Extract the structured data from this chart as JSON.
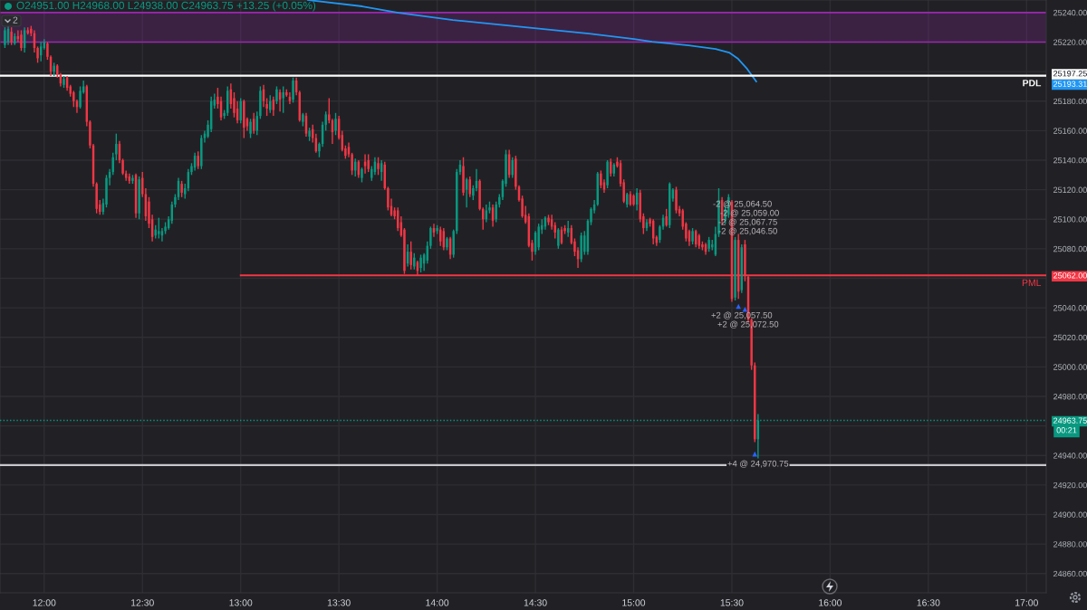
{
  "chart_data": {
    "type": "candlestick",
    "title": "O24951.00 H24968.00 L24938.00 C24963.75 +13.25 (+0.05%)",
    "x": [
      11.8,
      11.8167,
      11.8333,
      11.85,
      11.8667,
      11.8833,
      11.9,
      11.9167,
      11.9333,
      11.95,
      11.9667,
      11.9833,
      12,
      12.0167,
      12.0333,
      12.05,
      12.0667,
      12.0833,
      12.1,
      12.1167,
      12.1333,
      12.15,
      12.1667,
      12.1833,
      12.2,
      12.2167,
      12.2333,
      12.25,
      12.2667,
      12.2833,
      12.3,
      12.3167,
      12.3333,
      12.35,
      12.3667,
      12.3833,
      12.4,
      12.4167,
      12.4333,
      12.45,
      12.4667,
      12.4833,
      12.5,
      12.5167,
      12.5333,
      12.55,
      12.5667,
      12.5833,
      12.6,
      12.6167,
      12.6333,
      12.65,
      12.6667,
      12.6833,
      12.7,
      12.7167,
      12.7333,
      12.75,
      12.7667,
      12.7833,
      12.8,
      12.8167,
      12.8333,
      12.85,
      12.8667,
      12.8833,
      12.9,
      12.9167,
      12.9333,
      12.95,
      12.9667,
      12.9833,
      13,
      13.0167,
      13.0333,
      13.05,
      13.0667,
      13.0833,
      13.1,
      13.1167,
      13.1333,
      13.15,
      13.1667,
      13.1833,
      13.2,
      13.2167,
      13.2333,
      13.25,
      13.2667,
      13.2833,
      13.3,
      13.3167,
      13.3333,
      13.35,
      13.3667,
      13.3833,
      13.4,
      13.4167,
      13.4333,
      13.45,
      13.4667,
      13.4833,
      13.5,
      13.5167,
      13.5333,
      13.55,
      13.5667,
      13.5833,
      13.6,
      13.6167,
      13.6333,
      13.65,
      13.6667,
      13.6833,
      13.7,
      13.7167,
      13.7333,
      13.75,
      13.7667,
      13.7833,
      13.8,
      13.8167,
      13.8333,
      13.85,
      13.8667,
      13.8833,
      13.9,
      13.9167,
      13.9333,
      13.95,
      13.9667,
      13.9833,
      14,
      14.0167,
      14.0333,
      14.05,
      14.0667,
      14.0833,
      14.1,
      14.1167,
      14.1333,
      14.15,
      14.1667,
      14.1833,
      14.2,
      14.2167,
      14.2333,
      14.25,
      14.2667,
      14.2833,
      14.3,
      14.3167,
      14.3333,
      14.35,
      14.3667,
      14.3833,
      14.4,
      14.4167,
      14.4333,
      14.45,
      14.4667,
      14.4833,
      14.5,
      14.5167,
      14.5333,
      14.55,
      14.5667,
      14.5833,
      14.6,
      14.6167,
      14.6333,
      14.65,
      14.6667,
      14.6833,
      14.7,
      14.7167,
      14.7333,
      14.75,
      14.7667,
      14.7833,
      14.8,
      14.8167,
      14.8333,
      14.85,
      14.8667,
      14.8833,
      14.9,
      14.9167,
      14.9333,
      14.95,
      14.9667,
      14.9833,
      15,
      15.0167,
      15.0333,
      15.05,
      15.0667,
      15.0833,
      15.1,
      15.1167,
      15.1333,
      15.15,
      15.1667,
      15.1833,
      15.2,
      15.2167,
      15.2333,
      15.25,
      15.2667,
      15.2833,
      15.3,
      15.3167,
      15.3333,
      15.35,
      15.3667,
      15.3833,
      15.4,
      15.4167,
      15.4333,
      15.45,
      15.4667,
      15.4833,
      15.5,
      15.5167,
      15.5333,
      15.55,
      15.5667,
      15.5833,
      15.6,
      15.6167,
      15.6333
    ],
    "ohlc": [
      [
        25218,
        25230,
        25216,
        25228
      ],
      [
        25220,
        25231,
        25218,
        25229
      ],
      [
        25227,
        25230,
        25218,
        25220
      ],
      [
        25219,
        25226,
        25218,
        25224
      ],
      [
        25224,
        25228,
        25220,
        25222
      ],
      [
        25225,
        25228,
        25214,
        25216
      ],
      [
        25216,
        25230,
        25213,
        25228
      ],
      [
        25228,
        25230,
        25225,
        25226
      ],
      [
        25229,
        25231,
        25224,
        25226
      ],
      [
        25226,
        25228,
        25213,
        25216
      ],
      [
        25216,
        25217,
        25206,
        25209
      ],
      [
        25211,
        25220,
        25207,
        25217
      ],
      [
        25216,
        25222,
        25215,
        25220
      ],
      [
        25219,
        25220,
        25208,
        25210
      ],
      [
        25210,
        25211,
        25197,
        25200
      ],
      [
        25200,
        25206,
        25197,
        25204
      ],
      [
        25204,
        25205,
        25196,
        25198
      ],
      [
        25198,
        25199,
        25190,
        25192
      ],
      [
        25191,
        25197,
        25189,
        25195
      ],
      [
        25196,
        25197,
        25187,
        25189
      ],
      [
        25190,
        25191,
        25183,
        25185
      ],
      [
        25186,
        25187,
        25176,
        25180
      ],
      [
        25180,
        25181,
        25172,
        25176
      ],
      [
        25176,
        25190,
        25175,
        25187
      ],
      [
        25186,
        25194,
        25185,
        25190
      ],
      [
        25190,
        25191,
        25163,
        25166
      ],
      [
        25166,
        25167,
        25148,
        25150
      ],
      [
        25150,
        25151,
        25122,
        25124
      ],
      [
        25124,
        25125,
        25104,
        25107
      ],
      [
        25110,
        25113,
        25103,
        25105
      ],
      [
        25105,
        25114,
        25103,
        25111
      ],
      [
        25110,
        25130,
        25108,
        25128
      ],
      [
        25128,
        25134,
        25123,
        25132
      ],
      [
        25132,
        25145,
        25130,
        25142
      ],
      [
        25144,
        25158,
        25140,
        25151
      ],
      [
        25151,
        25153,
        25138,
        25140
      ],
      [
        25140,
        25141,
        25130,
        25131
      ],
      [
        25131,
        25133,
        25126,
        25128
      ],
      [
        25129,
        25131,
        25124,
        25126
      ],
      [
        25126,
        25130,
        25124,
        25128
      ],
      [
        25130,
        25131,
        25101,
        25104
      ],
      [
        25104,
        25129,
        25100,
        25127
      ],
      [
        25128,
        25132,
        25115,
        25117
      ],
      [
        25117,
        25121,
        25099,
        25102
      ],
      [
        25112,
        25115,
        25094,
        25097
      ],
      [
        25100,
        25103,
        25085,
        25088
      ],
      [
        25089,
        25096,
        25087,
        25093
      ],
      [
        25090,
        25101,
        25087,
        25092
      ],
      [
        25089,
        25094,
        25085,
        25092
      ],
      [
        25092,
        25098,
        25090,
        25095
      ],
      [
        25094,
        25102,
        25093,
        25100
      ],
      [
        25099,
        25112,
        25097,
        25110
      ],
      [
        25110,
        25117,
        25108,
        25115
      ],
      [
        25115,
        25128,
        25113,
        25126
      ],
      [
        25124,
        25126,
        25115,
        25118
      ],
      [
        25117,
        25124,
        25114,
        25121
      ],
      [
        25121,
        25134,
        25119,
        25132
      ],
      [
        25132,
        25138,
        25130,
        25136
      ],
      [
        25135,
        25145,
        25133,
        25143
      ],
      [
        25143,
        25146,
        25134,
        25136
      ],
      [
        25136,
        25157,
        25134,
        25155
      ],
      [
        25155,
        25160,
        25152,
        25158
      ],
      [
        25156,
        25167,
        25155,
        25164
      ],
      [
        25161,
        25183,
        25159,
        25180
      ],
      [
        25177,
        25185,
        25175,
        25181
      ],
      [
        25183,
        25189,
        25175,
        25178
      ],
      [
        25180,
        25183,
        25167,
        25169
      ],
      [
        25170,
        25174,
        25168,
        25172
      ],
      [
        25172,
        25190,
        25170,
        25187
      ],
      [
        25188,
        25192,
        25175,
        25178
      ],
      [
        25182,
        25186,
        25169,
        25172
      ],
      [
        25175,
        25180,
        25165,
        25167
      ],
      [
        25167,
        25182,
        25165,
        25180
      ],
      [
        25180,
        25181,
        25155,
        25162
      ],
      [
        25168,
        25169,
        25160,
        25163
      ],
      [
        25158,
        25168,
        25155,
        25166
      ],
      [
        25168,
        25172,
        25158,
        25160
      ],
      [
        25160,
        25173,
        25157,
        25170
      ],
      [
        25170,
        25190,
        25168,
        25187
      ],
      [
        25188,
        25191,
        25176,
        25180
      ],
      [
        25178,
        25182,
        25170,
        25175
      ],
      [
        25174,
        25184,
        25172,
        25180
      ],
      [
        25181,
        25183,
        25170,
        25174
      ],
      [
        25180,
        25190,
        25178,
        25188
      ],
      [
        25186,
        25188,
        25173,
        25181
      ],
      [
        25182,
        25190,
        25172,
        25186
      ],
      [
        25186,
        25188,
        25183,
        25184
      ],
      [
        25183,
        25186,
        25178,
        25180
      ],
      [
        25181,
        25196,
        25179,
        25194
      ],
      [
        25194,
        25196,
        25184,
        25186
      ],
      [
        25186,
        25187,
        25166,
        25167
      ],
      [
        25166,
        25172,
        25163,
        25171
      ],
      [
        25170,
        25172,
        25156,
        25158
      ],
      [
        25156,
        25162,
        25153,
        25160
      ],
      [
        25161,
        25164,
        25152,
        25155
      ],
      [
        25155,
        25158,
        25145,
        25146
      ],
      [
        25146,
        25152,
        25142,
        25151
      ],
      [
        25151,
        25166,
        25149,
        25164
      ],
      [
        25164,
        25173,
        25160,
        25171
      ],
      [
        25171,
        25182,
        25165,
        25167
      ],
      [
        25167,
        25168,
        25151,
        25159
      ],
      [
        25160,
        25172,
        25157,
        25168
      ],
      [
        25168,
        25170,
        25154,
        25155
      ],
      [
        25157,
        25160,
        25146,
        25147
      ],
      [
        25148,
        25150,
        25141,
        25143
      ],
      [
        25149,
        25152,
        25142,
        25144
      ],
      [
        25144,
        25145,
        25130,
        25133
      ],
      [
        25133,
        25141,
        25129,
        25139
      ],
      [
        25139,
        25140,
        25128,
        25130
      ],
      [
        25128,
        25135,
        25125,
        25134
      ],
      [
        25139,
        25144,
        25131,
        25136
      ],
      [
        25140,
        25144,
        25132,
        25134
      ],
      [
        25128,
        25136,
        25126,
        25134
      ],
      [
        25132,
        25142,
        25130,
        25139
      ],
      [
        25138,
        25142,
        25130,
        25134
      ],
      [
        25132,
        25140,
        25126,
        25138
      ],
      [
        25137,
        25139,
        25120,
        25121
      ],
      [
        25121,
        25122,
        25106,
        25108
      ],
      [
        25109,
        25114,
        25102,
        25103
      ],
      [
        25106,
        25108,
        25100,
        25102
      ],
      [
        25106,
        25108,
        25092,
        25094
      ],
      [
        25098,
        25102,
        25088,
        25089
      ],
      [
        25093,
        25094,
        25063,
        25065
      ],
      [
        25070,
        25083,
        25068,
        25078
      ],
      [
        25078,
        25085,
        25066,
        25069
      ],
      [
        25068,
        25077,
        25066,
        25074
      ],
      [
        25071,
        25072,
        25062,
        25065
      ],
      [
        25067,
        25076,
        25064,
        25074
      ],
      [
        25070,
        25077,
        25065,
        25076
      ],
      [
        25072,
        25085,
        25070,
        25082
      ],
      [
        25082,
        25095,
        25080,
        25094
      ],
      [
        25094,
        25097,
        25088,
        25091
      ],
      [
        25092,
        25096,
        25090,
        25094
      ],
      [
        25093,
        25095,
        25082,
        25085
      ],
      [
        25092,
        25094,
        25079,
        25081
      ],
      [
        25081,
        25088,
        25079,
        25087
      ],
      [
        25087,
        25088,
        25073,
        25076
      ],
      [
        25076,
        25093,
        25074,
        25092
      ],
      [
        25092,
        25134,
        25090,
        25132
      ],
      [
        25132,
        25140,
        25130,
        25137
      ],
      [
        25136,
        25142,
        25116,
        25118
      ],
      [
        25120,
        25128,
        25108,
        25127
      ],
      [
        25127,
        25129,
        25115,
        25117
      ],
      [
        25116,
        25123,
        25113,
        25121
      ],
      [
        25121,
        25134,
        25119,
        25126
      ],
      [
        25126,
        25127,
        25106,
        25107
      ],
      [
        25107,
        25108,
        25093,
        25100
      ],
      [
        25100,
        25110,
        25098,
        25106
      ],
      [
        25106,
        25112,
        25104,
        25108
      ],
      [
        25108,
        25110,
        25095,
        25099
      ],
      [
        25100,
        25112,
        25098,
        25110
      ],
      [
        25110,
        25117,
        25108,
        25115
      ],
      [
        25115,
        25127,
        25113,
        25126
      ],
      [
        25124,
        25147,
        25122,
        25144
      ],
      [
        25144,
        25147,
        25128,
        25130
      ],
      [
        25130,
        25142,
        25128,
        25140
      ],
      [
        25141,
        25143,
        25120,
        25122
      ],
      [
        25122,
        25123,
        25112,
        25113
      ],
      [
        25114,
        25116,
        25101,
        25102
      ],
      [
        25103,
        25109,
        25097,
        25098
      ],
      [
        25102,
        25104,
        25081,
        25082
      ],
      [
        25084,
        25086,
        25072,
        25078
      ],
      [
        25078,
        25092,
        25076,
        25091
      ],
      [
        25081,
        25097,
        25079,
        25095
      ],
      [
        25093,
        25100,
        25090,
        25096
      ],
      [
        25095,
        25102,
        25093,
        25101
      ],
      [
        25101,
        25103,
        25096,
        25098
      ],
      [
        25100,
        25103,
        25093,
        25095
      ],
      [
        25096,
        25098,
        25087,
        25091
      ],
      [
        25082,
        25094,
        25080,
        25093
      ],
      [
        25093,
        25095,
        25083,
        25084
      ],
      [
        25094,
        25096,
        25090,
        25092
      ],
      [
        25091,
        25099,
        25088,
        25094
      ],
      [
        25094,
        25096,
        25083,
        25084
      ],
      [
        25085,
        25087,
        25075,
        25078
      ],
      [
        25079,
        25081,
        25067,
        25073
      ],
      [
        25073,
        25091,
        25071,
        25089
      ],
      [
        25078,
        25092,
        25076,
        25089
      ],
      [
        25078,
        25100,
        25076,
        25099
      ],
      [
        25098,
        25108,
        25096,
        25107
      ],
      [
        25106,
        25113,
        25104,
        25110
      ],
      [
        25110,
        25132,
        25109,
        25131
      ],
      [
        25131,
        25133,
        25121,
        25123
      ],
      [
        25125,
        25127,
        25118,
        25120
      ],
      [
        25123,
        25140,
        25121,
        25139
      ],
      [
        25139,
        25141,
        25129,
        25131
      ],
      [
        25131,
        25138,
        25129,
        25137
      ],
      [
        25139,
        25142,
        25135,
        25136
      ],
      [
        25138,
        25140,
        25122,
        25124
      ],
      [
        25125,
        25127,
        25111,
        25112
      ],
      [
        25110,
        25118,
        25108,
        25117
      ],
      [
        25117,
        25119,
        25109,
        25110
      ],
      [
        25116,
        25117,
        25109,
        25110
      ],
      [
        25110,
        25121,
        25106,
        25118
      ],
      [
        25118,
        25120,
        25098,
        25100
      ],
      [
        25102,
        25104,
        25090,
        25094
      ],
      [
        25094,
        25100,
        25092,
        25098
      ],
      [
        25100,
        25101,
        25095,
        25097
      ],
      [
        25099,
        25100,
        25083,
        25087
      ],
      [
        25088,
        25089,
        25082,
        25084
      ],
      [
        25086,
        25096,
        25084,
        25095
      ],
      [
        25095,
        25103,
        25093,
        25101
      ],
      [
        25102,
        25107,
        25095,
        25096
      ],
      [
        25096,
        25125,
        25094,
        25124
      ],
      [
        25114,
        25121,
        25112,
        25120
      ],
      [
        25120,
        25122,
        25104,
        25106
      ],
      [
        25107,
        25109,
        25102,
        25104
      ],
      [
        25106,
        25107,
        25093,
        25095
      ],
      [
        25097,
        25098,
        25085,
        25087
      ],
      [
        25092,
        25093,
        25082,
        25085
      ],
      [
        25085,
        25094,
        25083,
        25092
      ],
      [
        25092,
        25093,
        25081,
        25083
      ],
      [
        25089,
        25090,
        25080,
        25082
      ],
      [
        25083,
        25085,
        25079,
        25081
      ],
      [
        25083,
        25084,
        25076,
        25078
      ],
      [
        25080,
        25088,
        25078,
        25086
      ],
      [
        25081,
        25086,
        25079,
        25083
      ],
      [
        25076,
        25095,
        25075,
        25090
      ],
      [
        25090,
        25121,
        25088,
        25113
      ],
      [
        25113,
        25115,
        25096,
        25099
      ],
      [
        25099,
        25109,
        25097,
        25107
      ],
      [
        25103,
        25117,
        25101,
        25115
      ],
      [
        25112,
        25113,
        25044,
        25046
      ],
      [
        25047,
        25088,
        25045,
        25086
      ],
      [
        25086,
        25090,
        25046,
        25051
      ],
      [
        25052,
        25083,
        25050,
        25081
      ],
      [
        25083,
        25086,
        25058,
        25062
      ],
      [
        25061,
        25062,
        25030,
        25032
      ],
      [
        25032,
        25033,
        24998,
        25001
      ],
      [
        25001,
        25003,
        24949,
        24951
      ],
      [
        24951,
        24968,
        24938,
        24963.75
      ]
    ],
    "series": [
      {
        "type": "line",
        "color": "#2196f3",
        "x": [
          13.342,
          13.619,
          13.803,
          14.08,
          14.311,
          14.541,
          14.772,
          15.002,
          15.094,
          15.279,
          15.417,
          15.486,
          15.532,
          15.578,
          15.624
        ],
        "values": [
          25248.5,
          25244.2,
          25239.9,
          25235,
          25231.9,
          25228.8,
          25225.8,
          25222.1,
          25220.2,
          25217.8,
          25215.3,
          25212.9,
          25208.6,
          25201.8,
          25193.31
        ]
      },
      {
        "type": "line",
        "name": "PML",
        "color": "#f23645",
        "x": [
          13,
          17.1
        ],
        "values": [
          25062,
          25062
        ]
      },
      {
        "type": "scatter",
        "color": "#2962ff",
        "marker": "triangle",
        "x": [
          15.5333,
          15.5667,
          15.6167
        ],
        "values": [
          25041,
          25039,
          24941
        ]
      }
    ],
    "xlim": [
      11.775,
      17.1
    ],
    "ylim": [
      24847,
      25248.5
    ],
    "xticks": [
      {
        "value": 12,
        "label": "12:00"
      },
      {
        "value": 12.5,
        "label": "12:30"
      },
      {
        "value": 13,
        "label": "13:00"
      },
      {
        "value": 13.5,
        "label": "13:30"
      },
      {
        "value": 14,
        "label": "14:00"
      },
      {
        "value": 14.5,
        "label": "14:30"
      },
      {
        "value": 15,
        "label": "15:00"
      },
      {
        "value": 15.5,
        "label": "15:30"
      },
      {
        "value": 16,
        "label": "16:00"
      },
      {
        "value": 16.5,
        "label": "16:30"
      },
      {
        "value": 17,
        "label": "17:00"
      }
    ],
    "yticks": [
      {
        "value": 24860,
        "label": "24860.00"
      },
      {
        "value": 24880,
        "label": "24880.00"
      },
      {
        "value": 24900,
        "label": "24900.00"
      },
      {
        "value": 24920,
        "label": "24920.00"
      },
      {
        "value": 24940,
        "label": "24940.00"
      },
      {
        "value": 24960,
        "label": null
      },
      {
        "value": 24963.75,
        "label": "24963.75"
      },
      {
        "value": 24980,
        "label": "24980.00"
      },
      {
        "value": 25000,
        "label": "25000.00"
      },
      {
        "value": 25020,
        "label": "25020.00"
      },
      {
        "value": 25040,
        "label": "25040.00"
      },
      {
        "value": 25060,
        "label": null
      },
      {
        "value": 25062,
        "label": "25062.00"
      },
      {
        "value": 25080,
        "label": "25080.00"
      },
      {
        "value": 25100,
        "label": "25100.00"
      },
      {
        "value": 25120,
        "label": "25120.00"
      },
      {
        "value": 25140,
        "label": "25140.00"
      },
      {
        "value": 25160,
        "label": "25160.00"
      },
      {
        "value": 25180,
        "label": "25180.00"
      },
      {
        "value": 25193.31,
        "label": "25193.31"
      },
      {
        "value": 25197.25,
        "label": "25197.25"
      },
      {
        "value": 25200,
        "label": null
      },
      {
        "value": 25220,
        "label": "25220.00"
      },
      {
        "value": 25240,
        "label": "25240.00"
      }
    ],
    "grid": true,
    "ref_lines": [
      {
        "axis": "y",
        "value": 25197.25,
        "label": "PDL",
        "color": "#ffffff"
      },
      {
        "axis": "y",
        "value": 24933.5,
        "label": null,
        "color": "#c8c8cc"
      },
      {
        "axis": "y",
        "value": 24963.75,
        "label": null,
        "color": "#089981",
        "line_style": "dotted"
      }
    ],
    "bands": [
      {
        "axis": "y",
        "from": 25220,
        "to": 25240,
        "color": "#9c27b0"
      }
    ],
    "annotations": [
      "2",
      "-2 @ 25,064.50",
      "-2 @ 25,059.00",
      "-2 @ 25,067.75",
      "-2 @ 25,046.50",
      "+2 @ 25,057.50",
      "+2 @ 25,072.50",
      "+4 @ 24,970.75",
      "00:21"
    ]
  }
}
